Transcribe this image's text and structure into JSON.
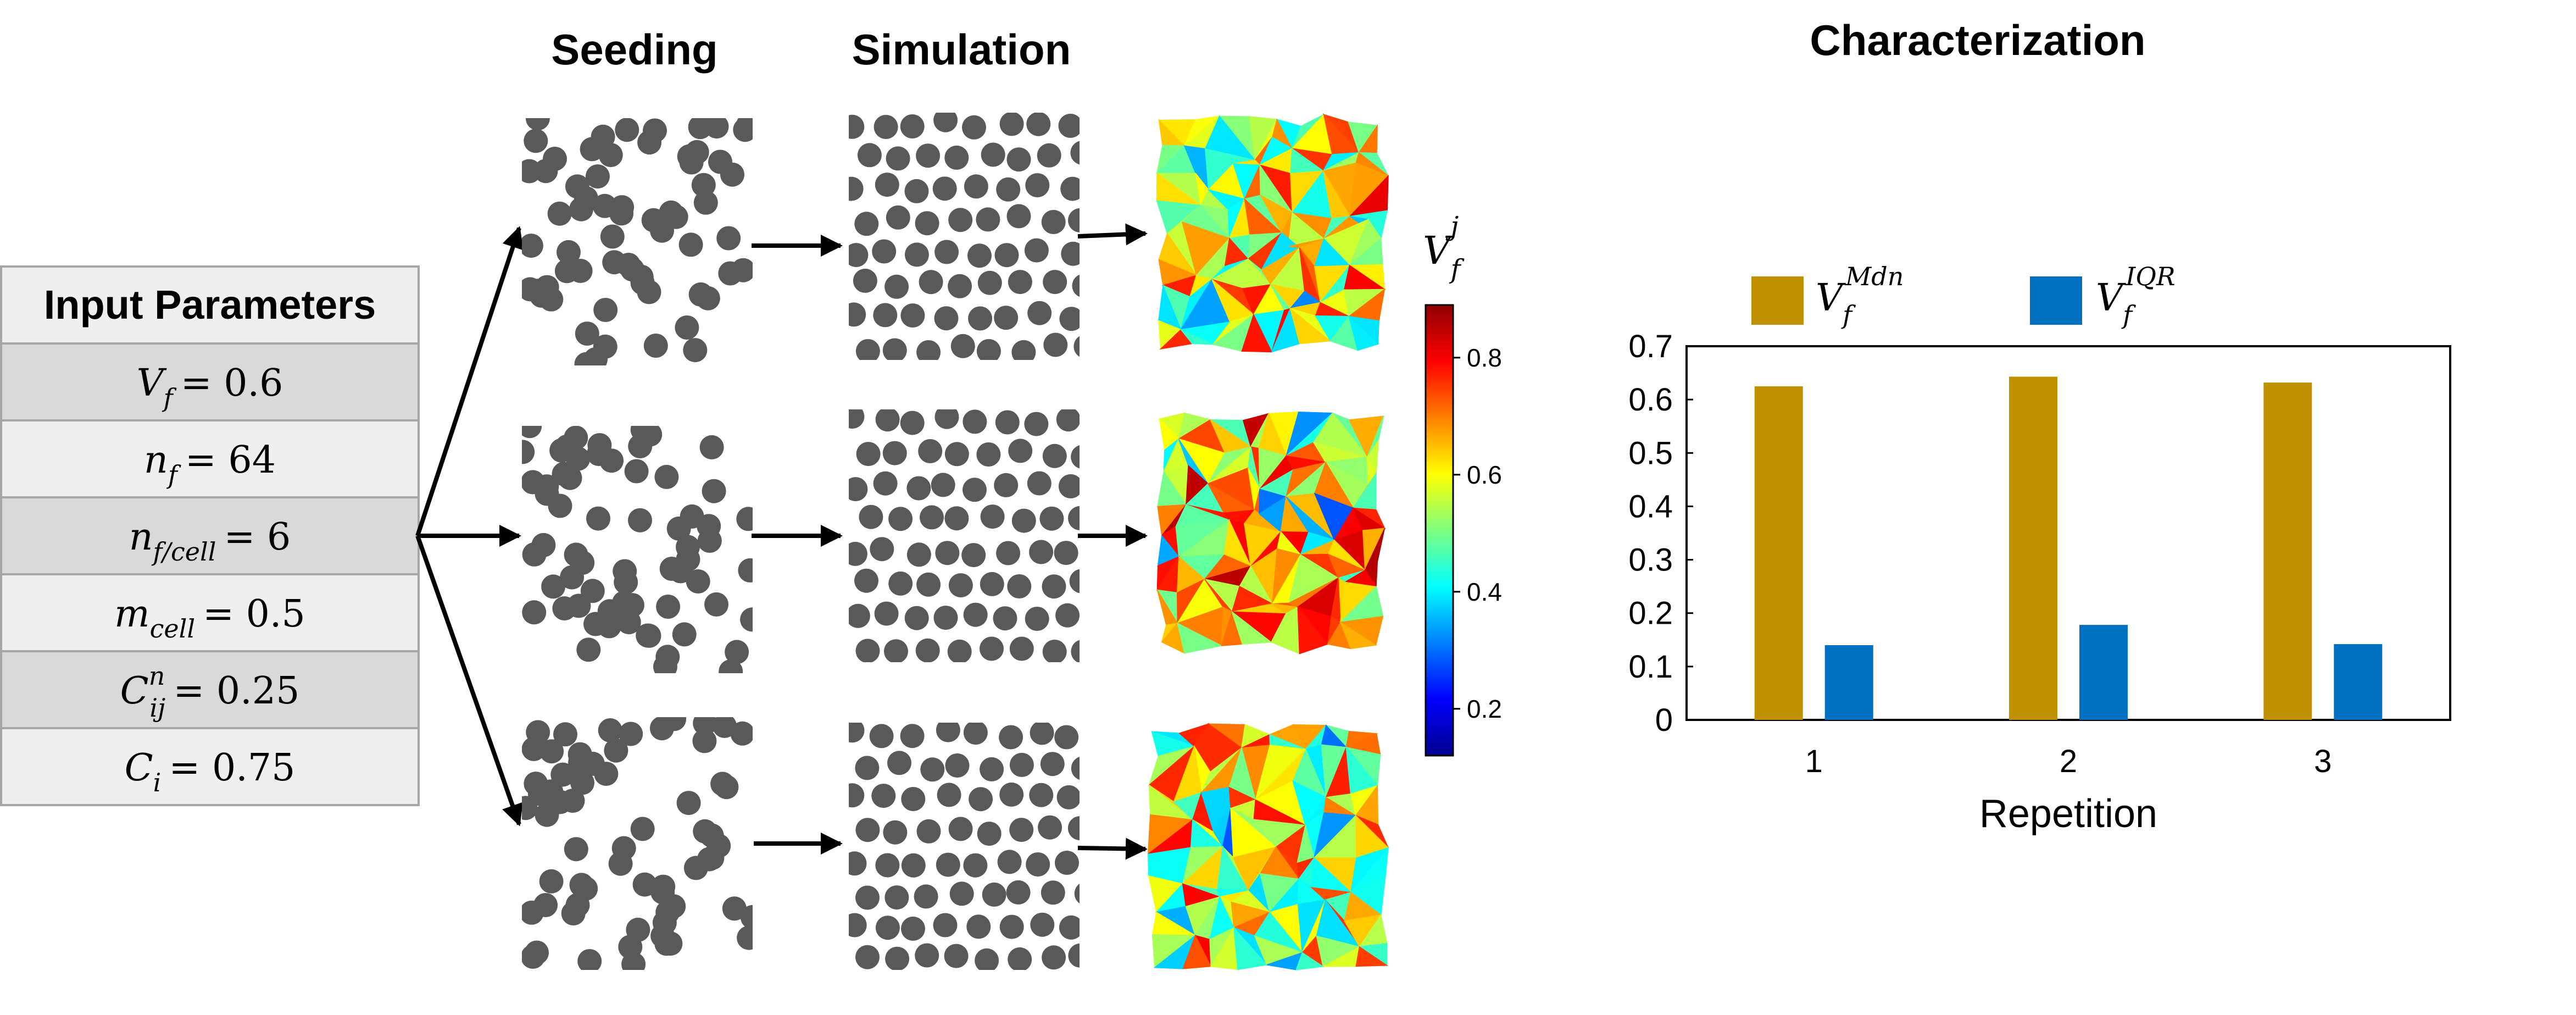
{
  "headers": {
    "seeding": "Seeding",
    "simulation": "Simulation",
    "characterization": "Characterization"
  },
  "input_table": {
    "title": "Input Parameters",
    "rows": [
      {
        "sym": "V",
        "sub": "f",
        "sup": "",
        "value": "= 0.6"
      },
      {
        "sym": "n",
        "sub": "f",
        "sup": "",
        "value": "= 64"
      },
      {
        "sym": "n",
        "sub": "f/cell",
        "sup": "",
        "value": "= 6"
      },
      {
        "sym": "m",
        "sub": "cell",
        "sup": "",
        "value": "= 0.5"
      },
      {
        "sym": "C",
        "sub": "ij",
        "sup": "n",
        "value": "= 0.25"
      },
      {
        "sym": "C",
        "sub": "i",
        "sup": "",
        "value": "= 0.75"
      }
    ]
  },
  "colorbar": {
    "label_sym": "V",
    "label_sub": "f",
    "label_sup": "j",
    "ticks": [
      "0.2",
      "0.4",
      "0.6",
      "0.8"
    ],
    "tick_values": [
      0.2,
      0.4,
      0.6,
      0.8
    ],
    "range": [
      0.12,
      0.89
    ]
  },
  "legend": [
    {
      "sym": "V",
      "sub": "f",
      "sup": "Mdn",
      "color": "#bf9000"
    },
    {
      "sym": "V",
      "sub": "f",
      "sup": "IQR",
      "color": "#0070c0"
    }
  ],
  "chart_data": {
    "type": "bar",
    "categories": [
      "1",
      "2",
      "3"
    ],
    "series": [
      {
        "name": "V_f^Mdn",
        "color": "#bf9000",
        "values": [
          0.625,
          0.643,
          0.632
        ]
      },
      {
        "name": "V_f^IQR",
        "color": "#0070c0",
        "values": [
          0.14,
          0.178,
          0.142
        ]
      }
    ],
    "xlabel": "Repetition",
    "ylabel": "",
    "ylim": [
      0,
      0.7
    ],
    "yticks": [
      "0",
      "0.1",
      "0.2",
      "0.3",
      "0.4",
      "0.5",
      "0.6",
      "0.7"
    ],
    "grid": false
  }
}
